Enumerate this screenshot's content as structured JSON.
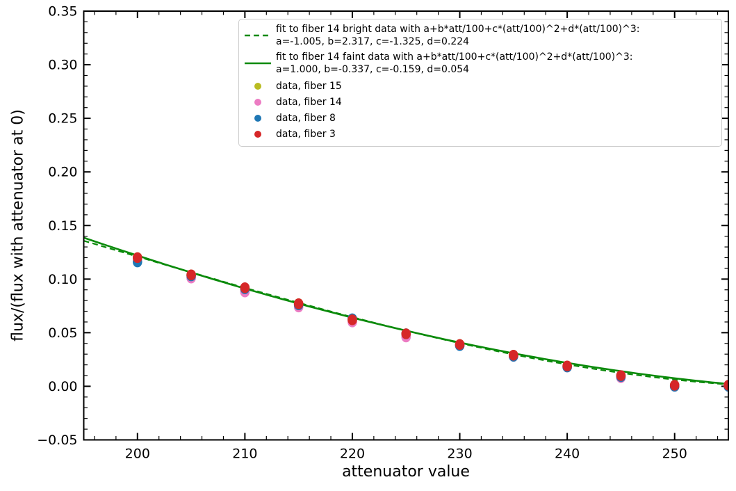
{
  "chart_data": {
    "type": "scatter",
    "title": "",
    "xlabel": "attenuator value",
    "ylabel": "flux/(flux with attenuator at 0)",
    "xlim": [
      195,
      255
    ],
    "ylim": [
      -0.05,
      0.35
    ],
    "grid": false,
    "legend_position": "upper right",
    "tick_direction": "in",
    "x_ticks": [
      {
        "v": 200,
        "label": "200"
      },
      {
        "v": 210,
        "label": "210"
      },
      {
        "v": 220,
        "label": "220"
      },
      {
        "v": 230,
        "label": "230"
      },
      {
        "v": 240,
        "label": "240"
      },
      {
        "v": 250,
        "label": "250"
      }
    ],
    "x_minor_tick_step": 2,
    "y_ticks": [
      {
        "v": -0.05,
        "label": "−0.05"
      },
      {
        "v": 0.0,
        "label": "0.00"
      },
      {
        "v": 0.05,
        "label": "0.05"
      },
      {
        "v": 0.1,
        "label": "0.10"
      },
      {
        "v": 0.15,
        "label": "0.15"
      },
      {
        "v": 0.2,
        "label": "0.20"
      },
      {
        "v": 0.25,
        "label": "0.25"
      },
      {
        "v": 0.3,
        "label": "0.30"
      },
      {
        "v": 0.35,
        "label": "0.35"
      }
    ],
    "y_minor_tick_step": 0.01,
    "x": [
      200,
      205,
      210,
      215,
      220,
      225,
      230,
      235,
      240,
      245,
      250,
      255
    ],
    "series": [
      {
        "name": "data, fiber 15",
        "color": "#b9bc22",
        "values": [
          0.12,
          0.104,
          0.091,
          0.077,
          0.062,
          0.049,
          0.039,
          0.029,
          0.019,
          0.01,
          0.001,
          0.001
        ]
      },
      {
        "name": "data, fiber 14",
        "color": "#ec7cc3",
        "values": [
          0.119,
          0.101,
          0.088,
          0.074,
          0.06,
          0.046,
          0.038,
          0.028,
          0.018,
          0.008,
          0.0,
          0.001
        ]
      },
      {
        "name": "data, fiber 8",
        "color": "#1f77b4",
        "values": [
          0.116,
          0.103,
          0.091,
          0.076,
          0.063,
          0.049,
          0.038,
          0.028,
          0.018,
          0.009,
          0.0,
          0.0
        ]
      },
      {
        "name": "data, fiber 3",
        "color": "#d62728",
        "values": [
          0.12,
          0.104,
          0.092,
          0.077,
          0.062,
          0.049,
          0.039,
          0.029,
          0.019,
          0.01,
          0.001,
          0.001
        ]
      }
    ],
    "fits": [
      {
        "legend_line1": "fit to fiber 14 bright data with a+b*att/100+c*(att/100)^2+d*(att/100)^3:",
        "legend_line2": " a=-1.005, b=2.317, c=-1.325, d=0.224",
        "style": "dashed",
        "color": "#0a8a0a",
        "coeffs": {
          "a": -1.005,
          "b": 2.317,
          "c": -1.325,
          "d": 0.224
        }
      },
      {
        "legend_line1": "fit to fiber 14 faint data with a+b*att/100+c*(att/100)^2+d*(att/100)^3:",
        "legend_line2": " a=1.000, b=-0.337, c=-0.159, d=0.054",
        "style": "solid",
        "color": "#0a8a0a",
        "coeffs": {
          "a": 1.0,
          "b": -0.337,
          "c": -0.159,
          "d": 0.054
        }
      }
    ],
    "colors": {
      "axes": "#000000",
      "background": "#ffffff",
      "legend_border": "#cccccc"
    }
  }
}
